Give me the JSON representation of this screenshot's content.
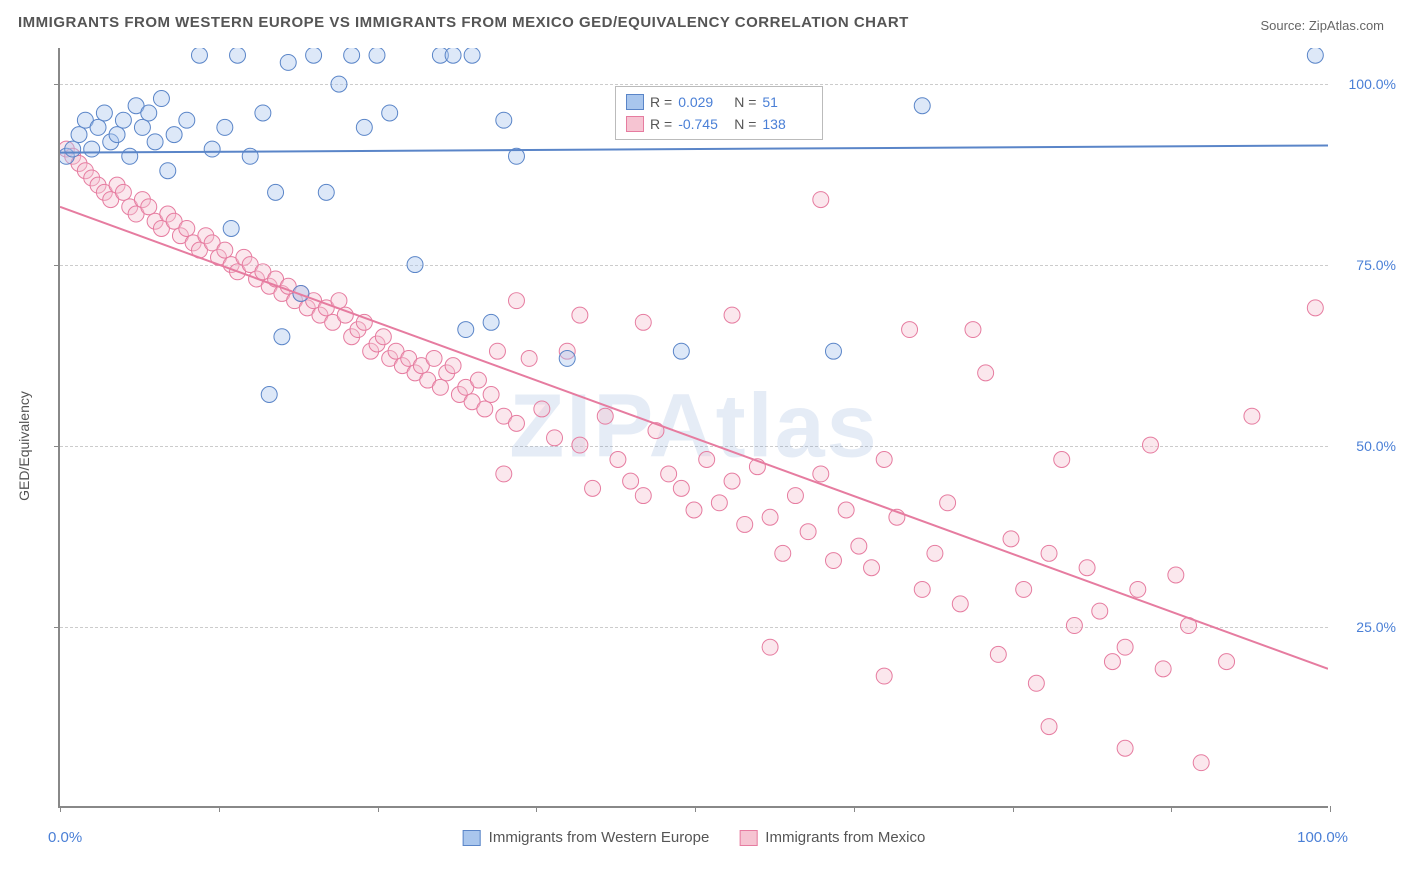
{
  "title": "IMMIGRANTS FROM WESTERN EUROPE VS IMMIGRANTS FROM MEXICO GED/EQUIVALENCY CORRELATION CHART",
  "source": "Source: ZipAtlas.com",
  "watermark": "ZIPAtlas",
  "ylabel": "GED/Equivalency",
  "chart": {
    "type": "scatter",
    "xlim": [
      0,
      100
    ],
    "ylim": [
      0,
      105
    ],
    "xtick_positions": [
      0,
      12.5,
      25,
      37.5,
      50,
      62.5,
      75,
      87.5,
      100
    ],
    "xtick_labels": {
      "left": "0.0%",
      "right": "100.0%"
    },
    "ytick_positions": [
      25,
      50,
      75,
      100
    ],
    "ytick_labels": [
      "25.0%",
      "50.0%",
      "75.0%",
      "100.0%"
    ],
    "background_color": "#ffffff",
    "grid_color": "#cccccc",
    "axis_color": "#888888",
    "label_color": "#4a7fd6",
    "text_color": "#555555",
    "marker_radius": 8,
    "marker_opacity": 0.4,
    "line_width": 2
  },
  "series_a": {
    "name": "Immigrants from Western Europe",
    "color_fill": "#a9c6ed",
    "color_stroke": "#5a85c8",
    "R": "0.029",
    "N": "51",
    "regression": {
      "x1": 0,
      "y1": 90.5,
      "x2": 100,
      "y2": 91.5
    },
    "points": [
      [
        0.5,
        90
      ],
      [
        1,
        91
      ],
      [
        1.5,
        93
      ],
      [
        2,
        95
      ],
      [
        2.5,
        91
      ],
      [
        3,
        94
      ],
      [
        3.5,
        96
      ],
      [
        4,
        92
      ],
      [
        4.5,
        93
      ],
      [
        5,
        95
      ],
      [
        5.5,
        90
      ],
      [
        6,
        97
      ],
      [
        6.5,
        94
      ],
      [
        7,
        96
      ],
      [
        7.5,
        92
      ],
      [
        8,
        98
      ],
      [
        9,
        93
      ],
      [
        10,
        95
      ],
      [
        11,
        104
      ],
      [
        12,
        91
      ],
      [
        13,
        94
      ],
      [
        14,
        104
      ],
      [
        15,
        90
      ],
      [
        16,
        96
      ],
      [
        17,
        85
      ],
      [
        17.5,
        65
      ],
      [
        18,
        103
      ],
      [
        19,
        71
      ],
      [
        20,
        104
      ],
      [
        21,
        85
      ],
      [
        22,
        100
      ],
      [
        23,
        104
      ],
      [
        24,
        94
      ],
      [
        25,
        104
      ],
      [
        26,
        96
      ],
      [
        28,
        75
      ],
      [
        30,
        104
      ],
      [
        31,
        104
      ],
      [
        32,
        66
      ],
      [
        32.5,
        104
      ],
      [
        34,
        67
      ],
      [
        35,
        95
      ],
      [
        36,
        90
      ],
      [
        40,
        62
      ],
      [
        49,
        63
      ],
      [
        61,
        63
      ],
      [
        68,
        97
      ],
      [
        99,
        104
      ],
      [
        16.5,
        57
      ],
      [
        13.5,
        80
      ],
      [
        8.5,
        88
      ]
    ]
  },
  "series_b": {
    "name": "Immigrants from Mexico",
    "color_fill": "#f6c4d2",
    "color_stroke": "#e67ca0",
    "R": "-0.745",
    "N": "138",
    "regression": {
      "x1": 0,
      "y1": 83,
      "x2": 100,
      "y2": 19
    },
    "points": [
      [
        0.5,
        91
      ],
      [
        1,
        90
      ],
      [
        1.5,
        89
      ],
      [
        2,
        88
      ],
      [
        2.5,
        87
      ],
      [
        3,
        86
      ],
      [
        3.5,
        85
      ],
      [
        4,
        84
      ],
      [
        4.5,
        86
      ],
      [
        5,
        85
      ],
      [
        5.5,
        83
      ],
      [
        6,
        82
      ],
      [
        6.5,
        84
      ],
      [
        7,
        83
      ],
      [
        7.5,
        81
      ],
      [
        8,
        80
      ],
      [
        8.5,
        82
      ],
      [
        9,
        81
      ],
      [
        9.5,
        79
      ],
      [
        10,
        80
      ],
      [
        10.5,
        78
      ],
      [
        11,
        77
      ],
      [
        11.5,
        79
      ],
      [
        12,
        78
      ],
      [
        12.5,
        76
      ],
      [
        13,
        77
      ],
      [
        13.5,
        75
      ],
      [
        14,
        74
      ],
      [
        14.5,
        76
      ],
      [
        15,
        75
      ],
      [
        15.5,
        73
      ],
      [
        16,
        74
      ],
      [
        16.5,
        72
      ],
      [
        17,
        73
      ],
      [
        17.5,
        71
      ],
      [
        18,
        72
      ],
      [
        18.5,
        70
      ],
      [
        19,
        71
      ],
      [
        19.5,
        69
      ],
      [
        20,
        70
      ],
      [
        20.5,
        68
      ],
      [
        21,
        69
      ],
      [
        21.5,
        67
      ],
      [
        22,
        70
      ],
      [
        22.5,
        68
      ],
      [
        23,
        65
      ],
      [
        23.5,
        66
      ],
      [
        24,
        67
      ],
      [
        24.5,
        63
      ],
      [
        25,
        64
      ],
      [
        25.5,
        65
      ],
      [
        26,
        62
      ],
      [
        26.5,
        63
      ],
      [
        27,
        61
      ],
      [
        27.5,
        62
      ],
      [
        28,
        60
      ],
      [
        28.5,
        61
      ],
      [
        29,
        59
      ],
      [
        29.5,
        62
      ],
      [
        30,
        58
      ],
      [
        30.5,
        60
      ],
      [
        31,
        61
      ],
      [
        31.5,
        57
      ],
      [
        32,
        58
      ],
      [
        32.5,
        56
      ],
      [
        33,
        59
      ],
      [
        33.5,
        55
      ],
      [
        34,
        57
      ],
      [
        34.5,
        63
      ],
      [
        35,
        54
      ],
      [
        36,
        53
      ],
      [
        37,
        62
      ],
      [
        38,
        55
      ],
      [
        39,
        51
      ],
      [
        40,
        63
      ],
      [
        41,
        50
      ],
      [
        42,
        44
      ],
      [
        43,
        54
      ],
      [
        44,
        48
      ],
      [
        45,
        45
      ],
      [
        46,
        43
      ],
      [
        47,
        52
      ],
      [
        48,
        46
      ],
      [
        49,
        44
      ],
      [
        50,
        41
      ],
      [
        51,
        48
      ],
      [
        52,
        42
      ],
      [
        53,
        45
      ],
      [
        54,
        39
      ],
      [
        55,
        47
      ],
      [
        56,
        40
      ],
      [
        57,
        35
      ],
      [
        58,
        43
      ],
      [
        59,
        38
      ],
      [
        60,
        46
      ],
      [
        61,
        34
      ],
      [
        62,
        41
      ],
      [
        63,
        36
      ],
      [
        64,
        33
      ],
      [
        65,
        48
      ],
      [
        66,
        40
      ],
      [
        67,
        66
      ],
      [
        68,
        30
      ],
      [
        69,
        35
      ],
      [
        70,
        42
      ],
      [
        71,
        28
      ],
      [
        72,
        66
      ],
      [
        73,
        60
      ],
      [
        74,
        21
      ],
      [
        75,
        37
      ],
      [
        76,
        30
      ],
      [
        77,
        17
      ],
      [
        78,
        35
      ],
      [
        79,
        48
      ],
      [
        80,
        25
      ],
      [
        81,
        33
      ],
      [
        82,
        27
      ],
      [
        83,
        20
      ],
      [
        84,
        22
      ],
      [
        85,
        30
      ],
      [
        86,
        50
      ],
      [
        87,
        19
      ],
      [
        88,
        32
      ],
      [
        89,
        25
      ],
      [
        90,
        6
      ],
      [
        92,
        20
      ],
      [
        94,
        54
      ],
      [
        99,
        69
      ],
      [
        60,
        84
      ],
      [
        41,
        68
      ],
      [
        84,
        8
      ],
      [
        78,
        11
      ],
      [
        65,
        18
      ],
      [
        56,
        22
      ],
      [
        53,
        68
      ],
      [
        35,
        46
      ],
      [
        36,
        70
      ],
      [
        46,
        67
      ]
    ]
  }
}
